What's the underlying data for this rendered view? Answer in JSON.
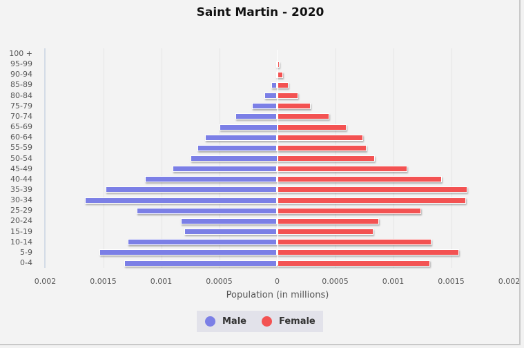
{
  "chart_data": {
    "type": "bar",
    "orientation": "horizontal",
    "subtype": "population-pyramid",
    "title": "Saint Martin - 2020",
    "xlabel": "Population (in millions)",
    "ylabel": "",
    "xlim": [
      -0.002,
      0.002
    ],
    "x_ticks": [
      "0.002",
      "0.0015",
      "0.001",
      "0.0005",
      "0",
      "0.0005",
      "0.001",
      "0.0015",
      "0.002"
    ],
    "x_tick_values": [
      -0.002,
      -0.0015,
      -0.001,
      -0.0005,
      0,
      0.0005,
      0.001,
      0.0015,
      0.002
    ],
    "grid": true,
    "legend_position": "bottom",
    "categories": [
      "100 +",
      "95-99",
      "90-94",
      "85-89",
      "80-84",
      "75-79",
      "70-74",
      "65-69",
      "60-64",
      "55-59",
      "50-54",
      "45-49",
      "40-44",
      "35-39",
      "30-34",
      "25-29",
      "20-24",
      "15-19",
      "10-14",
      "5-9",
      "0-4"
    ],
    "series": [
      {
        "name": "Male",
        "color": "#7b7fe6",
        "values": [
          0.0,
          5e-06,
          1e-05,
          5e-05,
          0.00011,
          0.00022,
          0.00036,
          0.0005,
          0.00062,
          0.00069,
          0.00075,
          0.0009,
          0.00114,
          0.00148,
          0.00166,
          0.00121,
          0.00083,
          0.0008,
          0.00129,
          0.00153,
          0.00132
        ]
      },
      {
        "name": "Female",
        "color": "#f35252",
        "values": [
          0.0,
          2e-05,
          5e-05,
          0.0001,
          0.00018,
          0.00029,
          0.00045,
          0.0006,
          0.00074,
          0.00077,
          0.00084,
          0.00112,
          0.00142,
          0.00164,
          0.00163,
          0.00124,
          0.00088,
          0.00083,
          0.00133,
          0.00157,
          0.00132
        ]
      }
    ]
  },
  "legend": {
    "items": [
      {
        "label": "Male",
        "color": "#7b7fe6"
      },
      {
        "label": "Female",
        "color": "#f35252"
      }
    ]
  }
}
